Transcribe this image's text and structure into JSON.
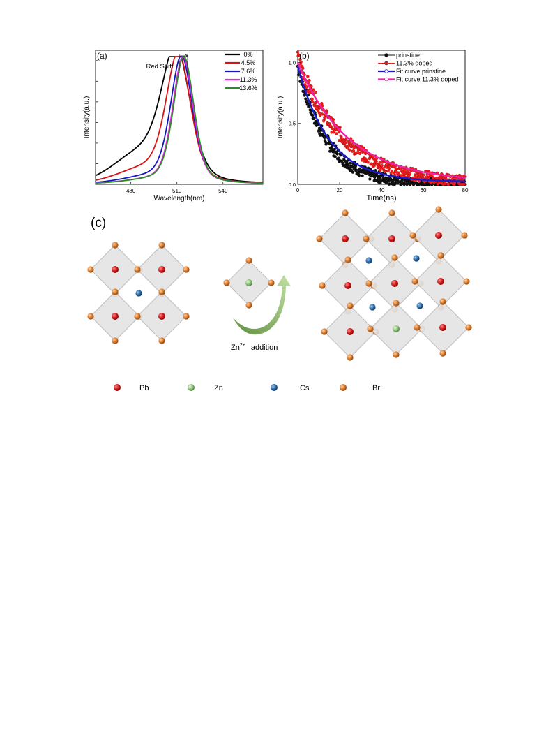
{
  "chart_data": [
    {
      "type": "line",
      "panel_label": "(a)",
      "xlabel": "Wavelength(nm)",
      "ylabel": "Intensity(a.u.)",
      "xlim": [
        457,
        566
      ],
      "ylim": [
        0,
        1.05
      ],
      "x_ticks": [
        480,
        510,
        540
      ],
      "y_ticks_labeled": false,
      "annotation": "Red Shift",
      "legend_position": "top-right",
      "series": [
        {
          "name": "0%",
          "color": "#000000",
          "center": 509.5,
          "fwhm": 22,
          "left_shoulder": 0.22
        },
        {
          "name": "4.5%",
          "color": "#dd1111",
          "center": 511.0,
          "fwhm": 19,
          "left_shoulder": 0.1
        },
        {
          "name": "7.6%",
          "color": "#1515c8",
          "center": 513.0,
          "fwhm": 17,
          "left_shoulder": 0.04
        },
        {
          "name": "11.3%",
          "color": "#ee22ee",
          "center": 514.0,
          "fwhm": 16,
          "left_shoulder": 0.02
        },
        {
          "name": "13.6%",
          "color": "#2a8a2a",
          "center": 514.5,
          "fwhm": 16,
          "left_shoulder": 0.02
        }
      ]
    },
    {
      "type": "scatter",
      "panel_label": "(b)",
      "xlabel": "Time(ns)",
      "ylabel": "Intensity(a.u.)",
      "xlim": [
        0,
        80
      ],
      "ylim": [
        0,
        1.1
      ],
      "x_ticks": [
        0,
        20,
        40,
        60,
        80
      ],
      "y_ticks": [
        0.0,
        0.5,
        1.0
      ],
      "legend_position": "top-right",
      "series": [
        {
          "name": "prinstine",
          "kind": "points",
          "color": "#111111",
          "tau": 14,
          "amp": 0.97,
          "noise": 0.06
        },
        {
          "name": "11.3% doped",
          "kind": "points",
          "color": "#ee1c1c",
          "tau": 22,
          "amp": 1.02,
          "noise": 0.07
        },
        {
          "name": "Fit curve prinstine",
          "kind": "fit",
          "color": "#1a1ad0",
          "tau": 15,
          "amp": 0.95
        },
        {
          "name": "Fit curve 11.3% doped",
          "kind": "fit",
          "color": "#ee22aa",
          "tau": 24,
          "amp": 0.98
        }
      ]
    }
  ],
  "diagram": {
    "panel_label": "(c)",
    "arrow_caption_prefix": "Zn",
    "arrow_caption_sup": "2+",
    "arrow_caption_suffix": "addition",
    "legend": [
      {
        "label": "Pb",
        "color": "#d11a1a"
      },
      {
        "label": "Zn",
        "color": "#8fc27a"
      },
      {
        "label": "Cs",
        "color": "#2a6aa8"
      },
      {
        "label": "Br",
        "color": "#d97a2a"
      }
    ]
  }
}
